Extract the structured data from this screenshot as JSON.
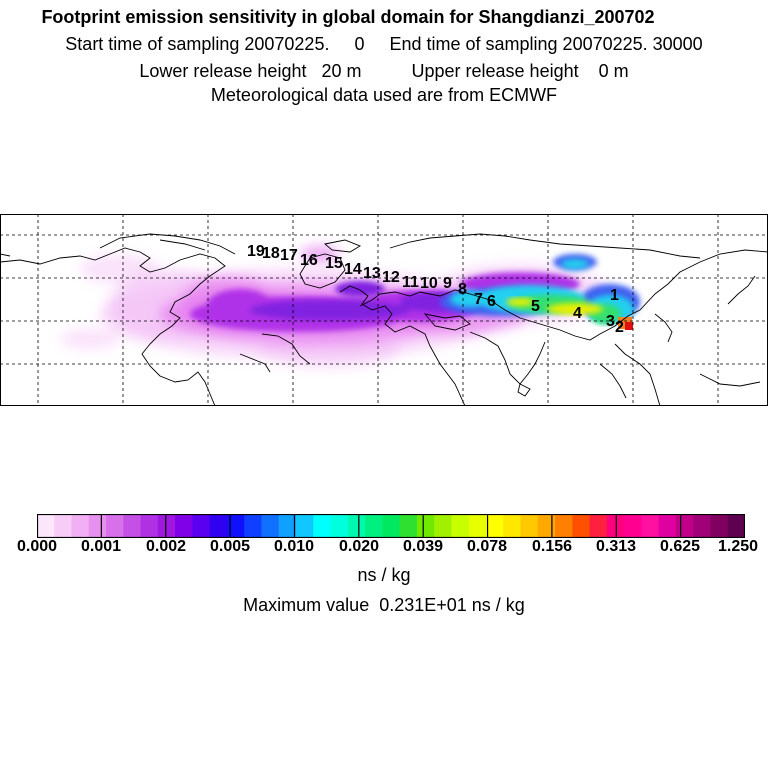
{
  "header": {
    "title": "Footprint emission sensitivity in global domain for Shangdianzi_200702",
    "line2": "Start time of sampling 20070225.     0     End time of sampling 20070225. 30000",
    "line3": "Lower release height   20 m          Upper release height    0 m",
    "line4": "Meteorological data used are from ECMWF"
  },
  "map": {
    "trajectory_labels": [
      "19",
      "18",
      "17",
      "16",
      "15",
      "14",
      "13",
      "12",
      "11",
      "10",
      "9",
      "8",
      "7",
      "6",
      "5",
      "4",
      "3",
      "2",
      "1"
    ],
    "plume_colors": {
      "light": "#f2b8f5",
      "pink": "#e680f0",
      "violet": "#b030e8",
      "purple": "#8020e0",
      "blue": "#4060f0",
      "cyan": "#20d0f0",
      "green": "#30e070",
      "yellow": "#e8f000",
      "orange": "#f08020",
      "red": "#e01010"
    }
  },
  "colorbar": {
    "colors": [
      "#fce6fc",
      "#f7ccf7",
      "#f0b0f3",
      "#e890ef",
      "#d870ea",
      "#c450e6",
      "#b030e4",
      "#a018e0",
      "#8000e8",
      "#5a00f0",
      "#3000f0",
      "#1010ff",
      "#1040ff",
      "#1070ff",
      "#10a0ff",
      "#10c8ff",
      "#00ffff",
      "#00ffdd",
      "#00f8b0",
      "#00f080",
      "#00e860",
      "#30e030",
      "#70e800",
      "#a0f000",
      "#c8ff00",
      "#e8ff00",
      "#ffff00",
      "#ffe800",
      "#ffc800",
      "#ffa800",
      "#ff8000",
      "#ff5000",
      "#ff2040",
      "#ff0080",
      "#ff0090",
      "#ff10a0",
      "#e000a0",
      "#c0008a",
      "#a00078",
      "#800060",
      "#600050"
    ],
    "tick_labels": [
      "0.000",
      "0.001",
      "0.002",
      "0.005",
      "0.010",
      "0.020",
      "0.039",
      "0.078",
      "0.156",
      "0.313",
      "0.625",
      "1.250"
    ],
    "unit": "ns / kg",
    "max_value": "Maximum value  0.231E+01 ns / kg"
  }
}
